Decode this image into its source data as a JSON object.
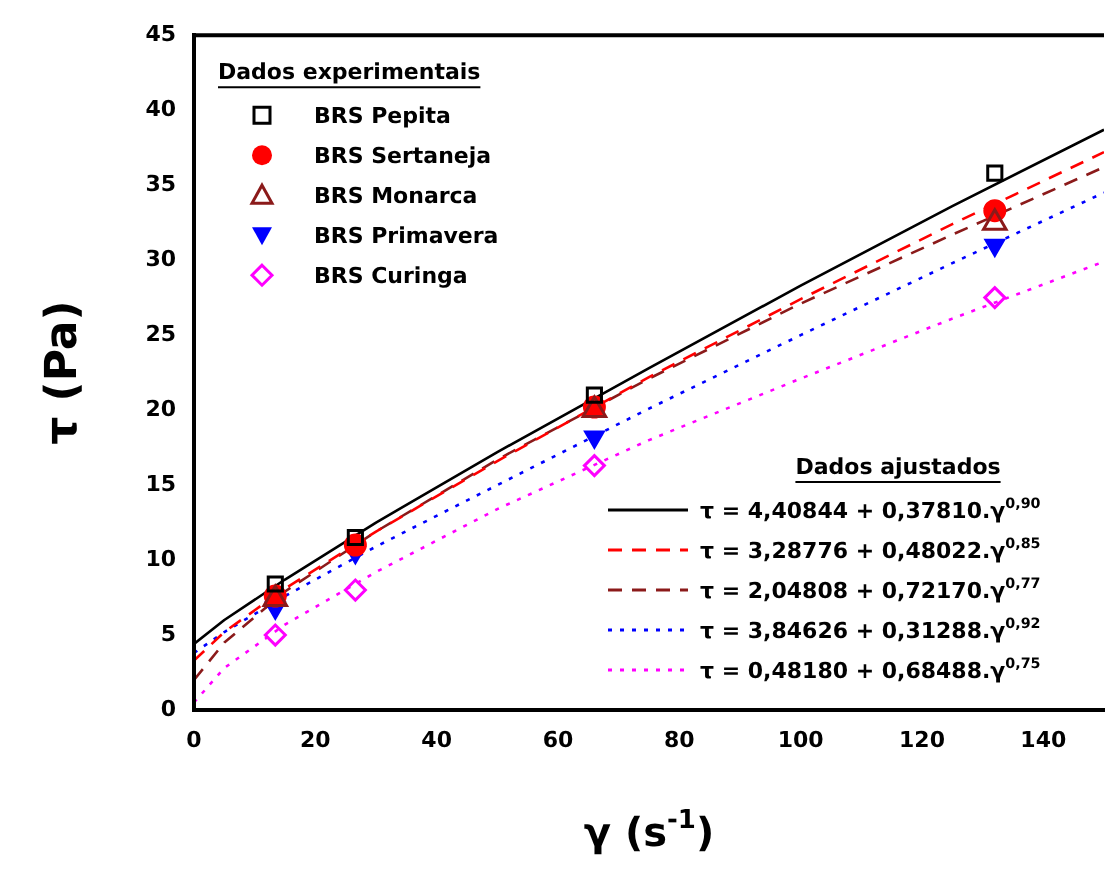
{
  "chart_data": {
    "type": "scatter",
    "xlabel": "γ (s$^{-1}$)",
    "ylabel": "τ (Pa)",
    "xlim": [
      0,
      150
    ],
    "xticks": [
      0,
      20,
      40,
      60,
      80,
      100,
      120,
      140
    ],
    "ylim": [
      0,
      45
    ],
    "yticks": [
      0,
      5,
      10,
      15,
      20,
      25,
      30,
      35,
      40,
      45
    ],
    "grid": false,
    "legend": "center",
    "legend_title": "Dados experimentais",
    "annotations": [
      "Dados ajustados"
    ],
    "series": [
      {
        "name": "BRS Pepita",
        "type": "scatter",
        "marker": "square",
        "color": "#000000",
        "x": [
          13.4,
          26.6,
          66,
          132
        ],
        "values": [
          8.4,
          11.5,
          21,
          35.8
        ]
      },
      {
        "name": "BRS Sertaneja",
        "type": "scatter",
        "marker": "circle",
        "color": "#ff0000",
        "x": [
          13.4,
          26.6,
          66,
          132
        ],
        "values": [
          7.6,
          11,
          20.2,
          33.3
        ]
      },
      {
        "name": "BRS Monarca",
        "type": "scatter",
        "marker": "triangle",
        "color": "#8b1a1a",
        "x": [
          13.4,
          26.6,
          66,
          132
        ],
        "values": [
          7.4,
          null,
          20,
          32.5
        ]
      },
      {
        "name": "BRS Primavera",
        "type": "scatter",
        "marker": "triangle-down",
        "color": "#0000ff",
        "x": [
          13.4,
          26.6,
          66,
          132
        ],
        "values": [
          6.8,
          10.5,
          18.2,
          31
        ]
      },
      {
        "name": "BRS Curinga",
        "type": "scatter",
        "marker": "diamond",
        "color": "#ff00ff",
        "x": [
          13.4,
          26.6,
          66,
          132
        ],
        "values": [
          5,
          8,
          16.3,
          27.5
        ]
      },
      {
        "name": "τ = 4,40844 + 0,37810.γ$^{0,90}$",
        "type": "line",
        "marker": "none",
        "line_style": "solid",
        "color": "#000000",
        "x": [
          0,
          5,
          15,
          30,
          50,
          75,
          100,
          125,
          150
        ],
        "values": [
          4.4,
          6,
          8.7,
          12.5,
          17.2,
          22.8,
          28.3,
          33.6,
          38.7
        ]
      },
      {
        "name": "τ = 3,28776 + 0,48022.γ$^{0,85}$",
        "type": "line",
        "marker": "none",
        "line_style": "dashed",
        "color": "#ff0000",
        "x": [
          0,
          5,
          15,
          30,
          50,
          75,
          100,
          125,
          150
        ],
        "values": [
          3.3,
          5.2,
          8.1,
          11.9,
          16.6,
          22.2,
          27.4,
          32.4,
          37.2
        ]
      },
      {
        "name": "τ = 2,04808 + 0,72170.γ$^{0,77}$",
        "type": "line",
        "marker": "none",
        "line_style": "dashed",
        "color": "#8b1a1a",
        "x": [
          0,
          5,
          15,
          30,
          50,
          75,
          100,
          125,
          150
        ],
        "values": [
          2,
          4.5,
          7.9,
          11.9,
          16.7,
          22.1,
          27.1,
          31.7,
          36.2
        ]
      },
      {
        "name": "τ = 3,84626 + 0,31288.γ$^{0,92}$",
        "type": "line",
        "marker": "none",
        "line_style": "dotted",
        "color": "#0000ff",
        "x": [
          0,
          5,
          15,
          30,
          50,
          75,
          100,
          125,
          150
        ],
        "values": [
          3.8,
          5.2,
          7.6,
          10.9,
          15,
          20.1,
          25,
          29.8,
          34.5
        ]
      },
      {
        "name": "τ = 0,48180 + 0,68488.γ$^{0,75}$",
        "type": "line",
        "marker": "none",
        "line_style": "dotted",
        "color": "#ff00ff",
        "x": [
          0,
          5,
          15,
          30,
          50,
          75,
          100,
          125,
          150
        ],
        "values": [
          0.5,
          2.8,
          5.7,
          9.2,
          13.4,
          18,
          22.1,
          26.1,
          29.9
        ]
      }
    ]
  }
}
